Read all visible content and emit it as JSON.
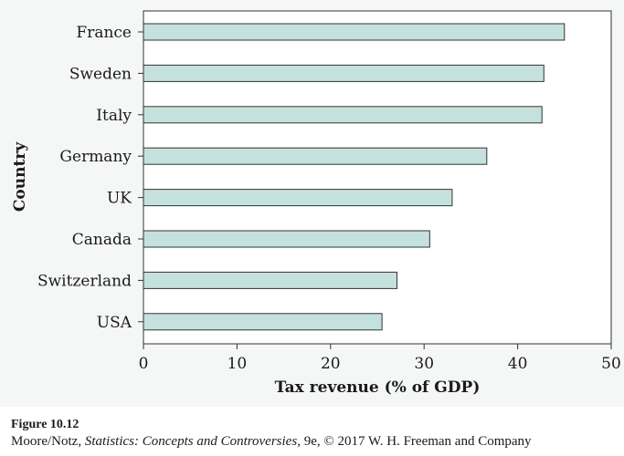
{
  "chart_data": {
    "type": "bar",
    "orientation": "horizontal",
    "categories": [
      "France",
      "Sweden",
      "Italy",
      "Germany",
      "UK",
      "Canada",
      "Switzerland",
      "USA"
    ],
    "values": [
      45.0,
      42.8,
      42.6,
      36.7,
      33.0,
      30.6,
      27.1,
      25.5
    ],
    "xlabel": "Tax revenue (% of GDP)",
    "ylabel": "Country",
    "xlim": [
      0,
      50
    ],
    "xticks": [
      0,
      10,
      20,
      30,
      40,
      50
    ],
    "grid": false,
    "bar_color": "#c5e1dd"
  },
  "caption": {
    "figure_label": "Figure 10.12",
    "credit_prefix": "Moore/Notz, ",
    "credit_title": "Statistics: Concepts and Controversies",
    "credit_suffix": ", 9e, © 2017 W. H. Freeman and Company"
  }
}
